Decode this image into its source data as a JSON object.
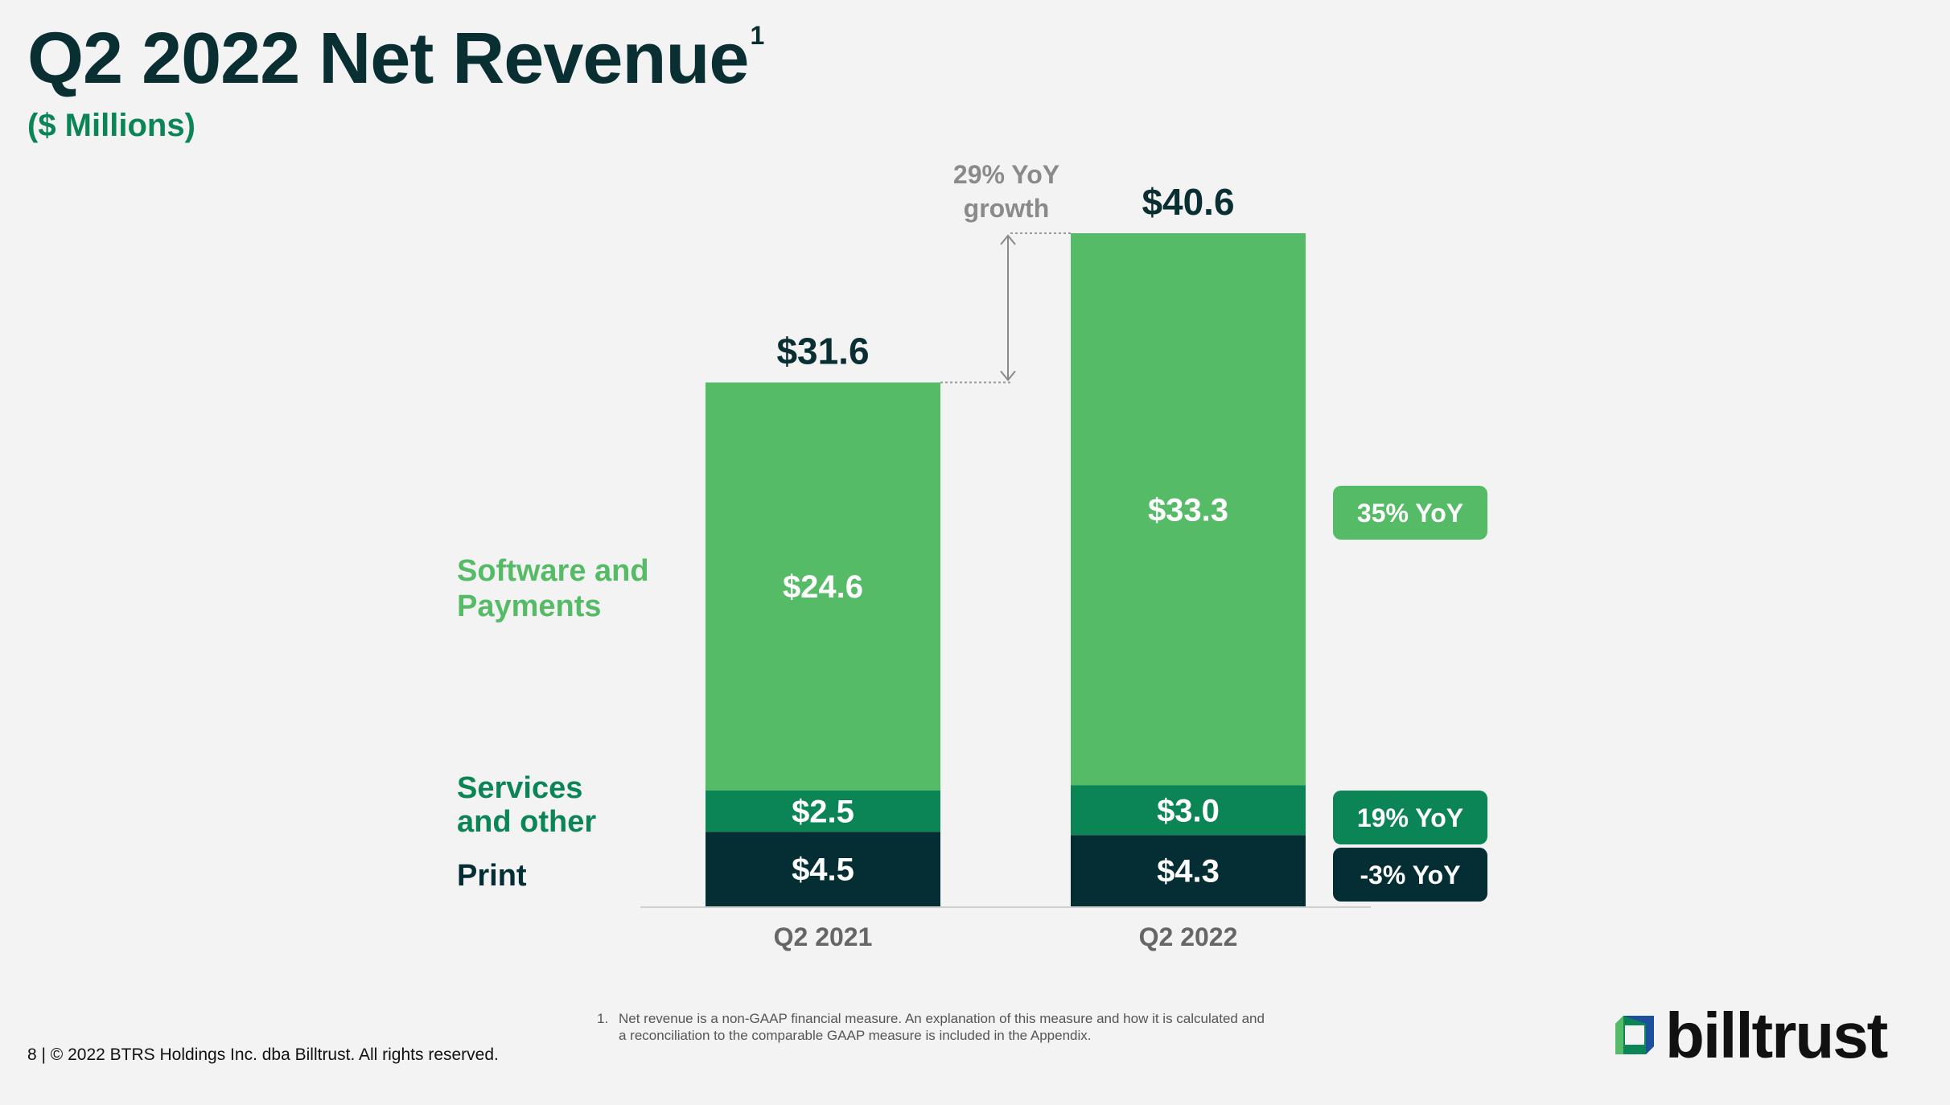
{
  "title": "Q2 2022 Net Revenue",
  "title_superscript": "1",
  "subtitle": "($ Millions)",
  "colors": {
    "software_payments": "#55bb66",
    "services_other": "#0b8555",
    "print": "#042e33",
    "title": "#0a2f33"
  },
  "chart_data": {
    "type": "bar",
    "stacked": true,
    "categories": [
      "Q2 2021",
      "Q2 2022"
    ],
    "series": [
      {
        "name": "Print",
        "values": [
          4.5,
          4.3
        ],
        "labels": [
          "$4.5",
          "$4.3"
        ],
        "color": "#042e33"
      },
      {
        "name": "Services and other",
        "values": [
          2.5,
          3.0
        ],
        "labels": [
          "$2.5",
          "$3.0"
        ],
        "color": "#0b8555"
      },
      {
        "name": "Software and Payments",
        "values": [
          24.6,
          33.3
        ],
        "labels": [
          "$24.6",
          "$33.3"
        ],
        "color": "#55bb66"
      }
    ],
    "totals": [
      31.6,
      40.6
    ],
    "total_labels": [
      "$31.6",
      "$40.6"
    ],
    "ylim": [
      0,
      40.6
    ],
    "grid": false,
    "legend_labels": [
      {
        "series": "Software and Payments",
        "lines": [
          "Software and",
          "Payments"
        ],
        "color": "#55bb66"
      },
      {
        "series": "Services and other",
        "lines": [
          "Services",
          "and other"
        ],
        "color": "#0b8555"
      },
      {
        "series": "Print",
        "lines": [
          "Print"
        ],
        "color": "#042e33"
      }
    ],
    "yoy_badges": [
      {
        "series": "Software and Payments",
        "text": "35% YoY",
        "color": "#55bb66"
      },
      {
        "series": "Services and other",
        "text": "19% YoY",
        "color": "#0b8555"
      },
      {
        "series": "Print",
        "text": "-3% YoY",
        "color": "#042e33"
      }
    ],
    "growth_annotation": [
      "29% YoY",
      "growth"
    ]
  },
  "footnote": {
    "number": "1.",
    "line1": "Net revenue is a non-GAAP financial measure. An explanation of this measure and how it is calculated and",
    "line2": "a reconciliation to the comparable GAAP measure is included in the Appendix."
  },
  "footer": "8  |  © 2022 BTRS Holdings Inc. dba Billtrust. All rights reserved.",
  "logo": {
    "text": "billtrust",
    "icon": "billtrust-logo-icon"
  }
}
